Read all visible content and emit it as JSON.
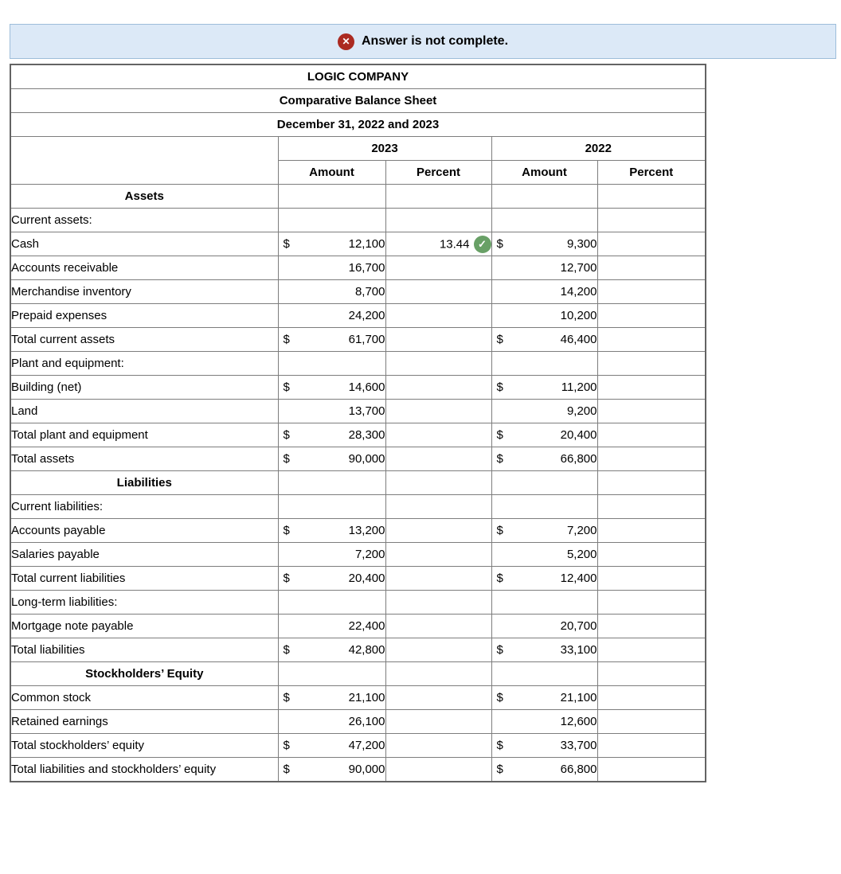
{
  "banner": {
    "icon": "x-circle-icon",
    "icon_color": "#ab2a21",
    "background": "#dce9f7",
    "text": "Answer is not complete."
  },
  "check_color": "#68a066",
  "table": {
    "title_lines": [
      "LOGIC COMPANY",
      "Comparative Balance Sheet",
      "December 31, 2022 and 2023"
    ],
    "year_headers": [
      "2023",
      "2022"
    ],
    "sub_headers": [
      "Amount",
      "Percent",
      "Amount",
      "Percent"
    ],
    "rows": [
      {
        "label": "Assets",
        "style": "section"
      },
      {
        "label": "Current assets:",
        "style": "group"
      },
      {
        "label": "Cash",
        "style": "item",
        "d1": "$",
        "v1": "12,100",
        "p1": "13.44",
        "p1_check": true,
        "d2": "$",
        "v2": "9,300",
        "p2": ""
      },
      {
        "label": "Accounts receivable",
        "style": "item",
        "v1": "16,700",
        "v2": "12,700"
      },
      {
        "label": "Merchandise inventory",
        "style": "item",
        "v1": "8,700",
        "v2": "14,200"
      },
      {
        "label": "Prepaid expenses",
        "style": "item",
        "v1": "24,200",
        "v2": "10,200"
      },
      {
        "label": "Total current assets",
        "style": "total",
        "d1": "$",
        "v1": "61,700",
        "d2": "$",
        "v2": "46,400",
        "rule_top": true
      },
      {
        "label": "Plant and equipment:",
        "style": "group"
      },
      {
        "label": "Building (net)",
        "style": "item",
        "d1": "$",
        "v1": "14,600",
        "d2": "$",
        "v2": "11,200"
      },
      {
        "label": "Land",
        "style": "item",
        "v1": "13,700",
        "v2": "9,200"
      },
      {
        "label": "Total plant and equipment",
        "style": "total",
        "d1": "$",
        "v1": "28,300",
        "d2": "$",
        "v2": "20,400",
        "rule_top": true
      },
      {
        "label": "Total assets",
        "style": "flush",
        "d1": "$",
        "v1": "90,000",
        "d2": "$",
        "v2": "66,800",
        "rule_top": true,
        "rule_bottom": "double"
      },
      {
        "label": "Liabilities",
        "style": "section"
      },
      {
        "label": "Current liabilities:",
        "style": "group"
      },
      {
        "label": "Accounts payable",
        "style": "item",
        "d1": "$",
        "v1": "13,200",
        "d2": "$",
        "v2": "7,200"
      },
      {
        "label": "Salaries payable",
        "style": "item",
        "v1": "7,200",
        "v2": "5,200"
      },
      {
        "label": "Total current liabilities",
        "style": "total",
        "d1": "$",
        "v1": "20,400",
        "d2": "$",
        "v2": "12,400",
        "rule_top": true
      },
      {
        "label": "Long-term liabilities:",
        "style": "group"
      },
      {
        "label": "Mortgage note payable",
        "style": "item",
        "v1": "22,400",
        "v2": "20,700"
      },
      {
        "label": "Total liabilities",
        "style": "total",
        "d1": "$",
        "v1": "42,800",
        "d2": "$",
        "v2": "33,100",
        "rule_top": true
      },
      {
        "label": "Stockholders’ Equity",
        "style": "section"
      },
      {
        "label": "Common stock",
        "style": "flush",
        "d1": "$",
        "v1": "21,100",
        "d2": "$",
        "v2": "21,100"
      },
      {
        "label": "Retained earnings",
        "style": "flush",
        "v1": "26,100",
        "v2": "12,600"
      },
      {
        "label": "Total stockholders’ equity",
        "style": "total2",
        "d1": "$",
        "v1": "47,200",
        "d2": "$",
        "v2": "33,700",
        "rule_top": true
      },
      {
        "label": "Total liabilities and stockholders’ equity",
        "style": "flush",
        "d1": "$",
        "v1": "90,000",
        "d2": "$",
        "v2": "66,800",
        "rule_top": true,
        "rule_bottom": "double"
      }
    ]
  }
}
